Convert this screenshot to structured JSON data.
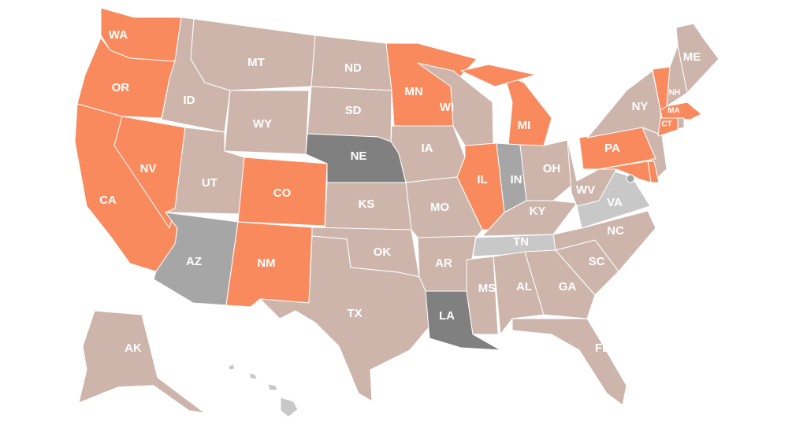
{
  "colors": {
    "orange": "#F98A5E",
    "tan": "#CDB5AC",
    "dark_gray": "#808080",
    "mid_gray": "#A6A6A6",
    "light_gray": "#C8C8C8"
  },
  "states": [
    {
      "abbr": "WA",
      "fill": "#F98A5E",
      "label": "WA"
    },
    {
      "abbr": "OR",
      "fill": "#F98A5E",
      "label": "OR"
    },
    {
      "abbr": "CA",
      "fill": "#F98A5E",
      "label": "CA"
    },
    {
      "abbr": "NV",
      "fill": "#F98A5E",
      "label": "NV"
    },
    {
      "abbr": "ID",
      "fill": "#CDB5AC",
      "label": "ID"
    },
    {
      "abbr": "MT",
      "fill": "#CDB5AC",
      "label": "MT"
    },
    {
      "abbr": "WY",
      "fill": "#CDB5AC",
      "label": "WY"
    },
    {
      "abbr": "UT",
      "fill": "#CDB5AC",
      "label": "UT"
    },
    {
      "abbr": "CO",
      "fill": "#F98A5E",
      "label": "CO"
    },
    {
      "abbr": "AZ",
      "fill": "#A6A6A6",
      "label": "AZ"
    },
    {
      "abbr": "NM",
      "fill": "#F98A5E",
      "label": "NM"
    },
    {
      "abbr": "ND",
      "fill": "#CDB5AC",
      "label": "ND"
    },
    {
      "abbr": "SD",
      "fill": "#CDB5AC",
      "label": "SD"
    },
    {
      "abbr": "NE",
      "fill": "#808080",
      "label": "NE"
    },
    {
      "abbr": "KS",
      "fill": "#CDB5AC",
      "label": "KS"
    },
    {
      "abbr": "OK",
      "fill": "#CDB5AC",
      "label": "OK"
    },
    {
      "abbr": "TX",
      "fill": "#CDB5AC",
      "label": "TX"
    },
    {
      "abbr": "MN",
      "fill": "#F98A5E",
      "label": "MN"
    },
    {
      "abbr": "IA",
      "fill": "#CDB5AC",
      "label": "IA"
    },
    {
      "abbr": "MO",
      "fill": "#CDB5AC",
      "label": "MO"
    },
    {
      "abbr": "AR",
      "fill": "#CDB5AC",
      "label": "AR"
    },
    {
      "abbr": "LA",
      "fill": "#808080",
      "label": "LA"
    },
    {
      "abbr": "WI",
      "fill": "#CDB5AC",
      "label": "WI"
    },
    {
      "abbr": "IL",
      "fill": "#F98A5E",
      "label": "IL"
    },
    {
      "abbr": "MI",
      "fill": "#F98A5E",
      "label": "MI"
    },
    {
      "abbr": "IN",
      "fill": "#A6A6A6",
      "label": "IN"
    },
    {
      "abbr": "OH",
      "fill": "#CDB5AC",
      "label": "OH"
    },
    {
      "abbr": "KY",
      "fill": "#CDB5AC",
      "label": "KY"
    },
    {
      "abbr": "TN",
      "fill": "#C8C8C8",
      "label": "TN"
    },
    {
      "abbr": "MS",
      "fill": "#CDB5AC",
      "label": "MS"
    },
    {
      "abbr": "AL",
      "fill": "#CDB5AC",
      "label": "AL"
    },
    {
      "abbr": "GA",
      "fill": "#CDB5AC",
      "label": "GA"
    },
    {
      "abbr": "FL",
      "fill": "#CDB5AC",
      "label": "FL"
    },
    {
      "abbr": "SC",
      "fill": "#CDB5AC",
      "label": "SC"
    },
    {
      "abbr": "NC",
      "fill": "#CDB5AC",
      "label": "NC"
    },
    {
      "abbr": "VA",
      "fill": "#C8C8C8",
      "label": "VA"
    },
    {
      "abbr": "WV",
      "fill": "#CDB5AC",
      "label": "WV"
    },
    {
      "abbr": "PA",
      "fill": "#F98A5E",
      "label": "PA"
    },
    {
      "abbr": "NY",
      "fill": "#CDB5AC",
      "label": "NY"
    },
    {
      "abbr": "NJ",
      "fill": "#CDB5AC",
      "label": ""
    },
    {
      "abbr": "DE",
      "fill": "#F98A5E",
      "label": ""
    },
    {
      "abbr": "MD",
      "fill": "#F98A5E",
      "label": ""
    },
    {
      "abbr": "VT",
      "fill": "#F98A5E",
      "label": ""
    },
    {
      "abbr": "NH",
      "fill": "#CDB5AC",
      "label": "NH"
    },
    {
      "abbr": "ME",
      "fill": "#CDB5AC",
      "label": "ME"
    },
    {
      "abbr": "MA",
      "fill": "#F98A5E",
      "label": "MA"
    },
    {
      "abbr": "CT",
      "fill": "#F98A5E",
      "label": "CT"
    },
    {
      "abbr": "RI",
      "fill": "#CDB5AC",
      "label": ""
    },
    {
      "abbr": "AK",
      "fill": "#CDB5AC",
      "label": "AK"
    },
    {
      "abbr": "HI",
      "fill": "#C8C8C8",
      "label": ""
    },
    {
      "abbr": "DC",
      "fill": "#A6A6A6",
      "label": ""
    }
  ]
}
